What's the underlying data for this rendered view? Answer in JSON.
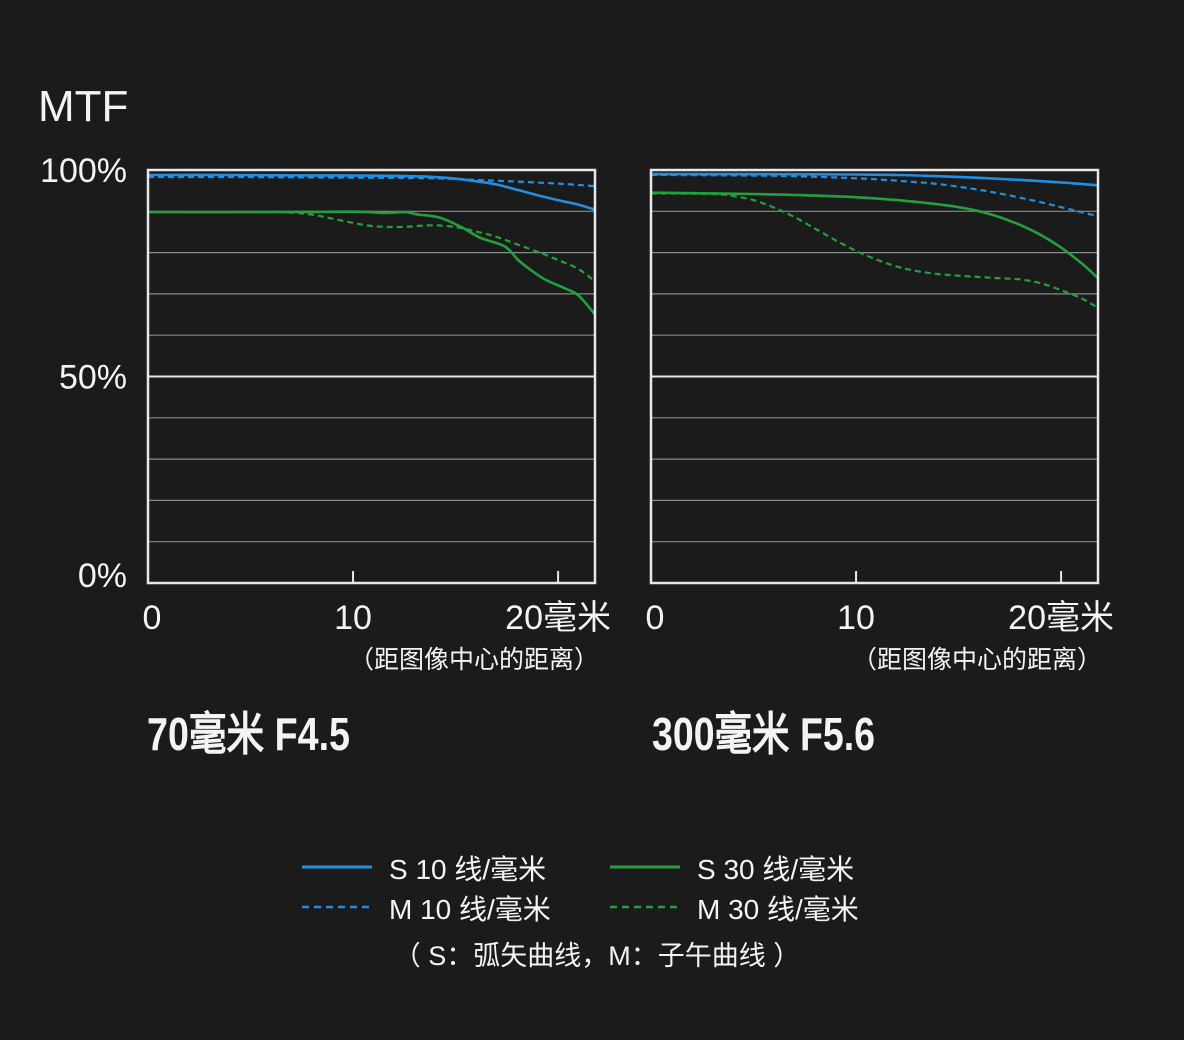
{
  "colors": {
    "background": "#1b1b1b",
    "frame": "#e8e8e8",
    "grid": "#8a8a8a",
    "text": "#f4f4f4"
  },
  "legend": {
    "position": "bottom-center",
    "items": [
      {
        "label": "S 10 线/毫米",
        "color": "#1f8fe3",
        "dashed": false
      },
      {
        "label": "S 30 线/毫米",
        "color": "#22a03f",
        "dashed": false
      },
      {
        "label": "M 10 线/毫米",
        "color": "#1f8fe3",
        "dashed": true
      },
      {
        "label": "M 30 线/毫米",
        "color": "#22a03f",
        "dashed": true
      }
    ],
    "note": "（ S：弧矢曲线，M：子午曲线 ）"
  },
  "chart_data": [
    {
      "type": "line",
      "title": "70毫米 F4.5",
      "ylabel": "MTF",
      "xlabel": "（距图像中心的距离）",
      "xlim": [
        0,
        21.8
      ],
      "ylim": [
        0,
        100
      ],
      "xticks": [
        0,
        10,
        20
      ],
      "xtick_labels": [
        "0",
        "10",
        "20毫米"
      ],
      "yticks": [
        100,
        50,
        0
      ],
      "ytick_labels": [
        "100%",
        "50%",
        "0%"
      ],
      "grid": true,
      "grid_step": 10,
      "reference_line": 50,
      "series": [
        {
          "name": "S 10 线/毫米",
          "color": "#1f8fe3",
          "dashed": false,
          "x": [
            0,
            4,
            8,
            12,
            14,
            15,
            16,
            17,
            18,
            19,
            20,
            21,
            21.8
          ],
          "y": [
            98.8,
            98.8,
            98.7,
            98.6,
            98.3,
            97.9,
            97.3,
            96.5,
            95.2,
            93.9,
            92.7,
            91.6,
            90.4
          ]
        },
        {
          "name": "S 30 线/毫米",
          "color": "#22a03f",
          "dashed": false,
          "x": [
            0,
            5,
            10,
            11.5,
            12.5,
            13.2,
            14.2,
            15.2,
            16.2,
            17.4,
            18.1,
            18.8,
            19.4,
            20.3,
            21.0,
            21.8
          ],
          "y": [
            89.8,
            89.8,
            89.9,
            89.6,
            89.8,
            89.2,
            88.5,
            86.4,
            83.6,
            81.5,
            78.0,
            75.3,
            73.4,
            71.4,
            69.6,
            65.0
          ]
        },
        {
          "name": "M 10 线/毫米",
          "color": "#1f8fe3",
          "dashed": true,
          "x": [
            0,
            4,
            8,
            12,
            14,
            16,
            18,
            20,
            21.8
          ],
          "y": [
            98.3,
            98.3,
            98.2,
            98.1,
            98.0,
            97.6,
            97.2,
            96.7,
            96.1
          ]
        },
        {
          "name": "M 30 线/毫米",
          "color": "#22a03f",
          "dashed": true,
          "x": [
            0,
            5,
            6.9,
            8,
            9,
            10,
            11,
            12.3,
            13.8,
            15,
            16,
            17,
            18,
            19,
            20,
            21,
            21.8
          ],
          "y": [
            89.8,
            89.8,
            89.7,
            89.2,
            88.2,
            87.2,
            86.4,
            86.2,
            86.6,
            86.2,
            85.1,
            83.8,
            82.0,
            80.2,
            78.2,
            76.0,
            73.0
          ]
        }
      ]
    },
    {
      "type": "line",
      "title": "300毫米 F5.6",
      "xlabel": "（距图像中心的距离）",
      "xlim": [
        0,
        21.8
      ],
      "ylim": [
        0,
        100
      ],
      "xticks": [
        0,
        10,
        20
      ],
      "xtick_labels": [
        "0",
        "10",
        "20毫米"
      ],
      "grid": true,
      "grid_step": 10,
      "reference_line": 50,
      "series": [
        {
          "name": "S 10 线/毫米",
          "color": "#1f8fe3",
          "dashed": false,
          "x": [
            0,
            5,
            10,
            12,
            14,
            16,
            18,
            20,
            21.8
          ],
          "y": [
            99.0,
            99.0,
            98.9,
            98.8,
            98.5,
            98.1,
            97.6,
            97.0,
            96.3
          ]
        },
        {
          "name": "S 30 线/毫米",
          "color": "#22a03f",
          "dashed": false,
          "x": [
            0,
            5,
            8,
            10,
            12,
            14,
            15,
            16,
            17,
            18,
            19,
            20,
            21,
            21.8
          ],
          "y": [
            94.5,
            94.2,
            93.8,
            93.4,
            92.7,
            91.7,
            91.0,
            90.0,
            88.6,
            86.7,
            84.3,
            81.2,
            77.4,
            73.8
          ]
        },
        {
          "name": "M 10 线/毫米",
          "color": "#1f8fe3",
          "dashed": true,
          "x": [
            0,
            4,
            7,
            10,
            12,
            14,
            16,
            17,
            18,
            19,
            20,
            21,
            21.8
          ],
          "y": [
            98.8,
            98.7,
            98.5,
            98.0,
            97.4,
            96.6,
            95.2,
            94.3,
            93.3,
            92.2,
            91.0,
            89.8,
            88.8
          ]
        },
        {
          "name": "M 30 线/毫米",
          "color": "#22a03f",
          "dashed": true,
          "x": [
            0,
            3,
            4,
            5,
            6,
            7,
            8,
            9,
            10,
            11,
            12,
            13,
            14,
            15,
            16,
            17,
            18,
            19,
            20,
            21,
            21.8
          ],
          "y": [
            94.3,
            94.2,
            93.7,
            92.7,
            90.9,
            88.6,
            85.8,
            83.0,
            80.4,
            78.3,
            76.6,
            75.5,
            74.8,
            74.4,
            74.1,
            73.8,
            73.5,
            72.6,
            70.9,
            68.9,
            66.6
          ]
        }
      ]
    }
  ]
}
